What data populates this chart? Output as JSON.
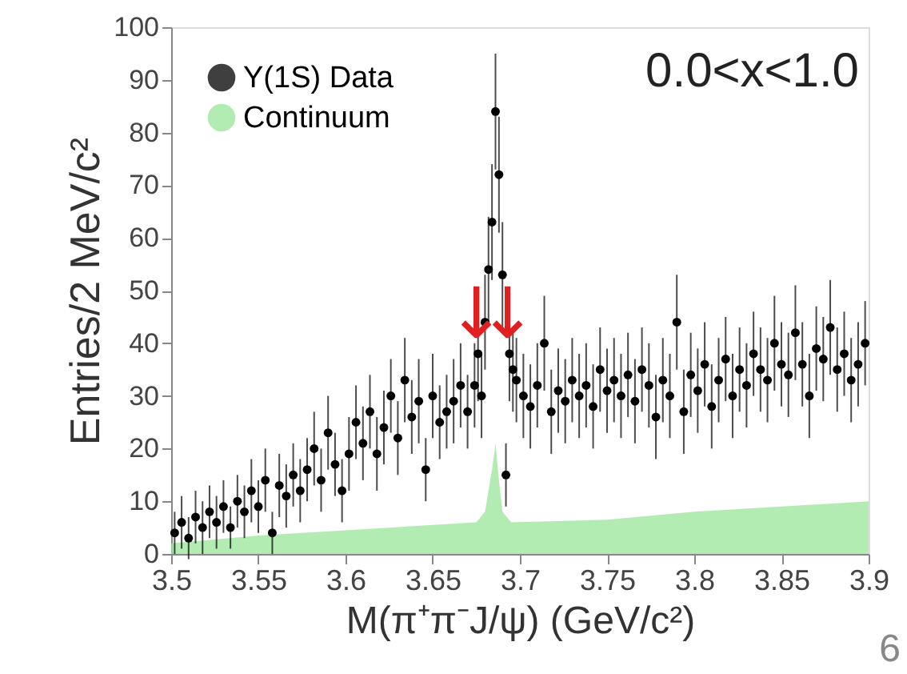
{
  "chart_data": {
    "type": "scatter",
    "xlabel": "M(π⁺π⁻J/ψ) (GeV/c²)",
    "ylabel": "Entries/2 MeV/c²",
    "xlim": [
      3.5,
      3.9
    ],
    "ylim": [
      0,
      100
    ],
    "xticks": [
      3.5,
      3.55,
      3.6,
      3.65,
      3.7,
      3.75,
      3.8,
      3.85,
      3.9
    ],
    "yticks": [
      0,
      10,
      20,
      30,
      40,
      50,
      60,
      70,
      80,
      90,
      100
    ],
    "grid": false,
    "legend": "top left",
    "series": [
      {
        "name": "Υ(1S) Data",
        "color": "#000000",
        "marker": "circle",
        "x": [
          3.502,
          3.506,
          3.51,
          3.514,
          3.518,
          3.522,
          3.526,
          3.53,
          3.534,
          3.538,
          3.542,
          3.546,
          3.55,
          3.554,
          3.558,
          3.562,
          3.566,
          3.57,
          3.574,
          3.578,
          3.582,
          3.586,
          3.59,
          3.594,
          3.598,
          3.602,
          3.606,
          3.61,
          3.614,
          3.618,
          3.622,
          3.626,
          3.63,
          3.634,
          3.638,
          3.642,
          3.646,
          3.65,
          3.654,
          3.658,
          3.662,
          3.666,
          3.67,
          3.674,
          3.676,
          3.678,
          3.68,
          3.682,
          3.684,
          3.686,
          3.688,
          3.69,
          3.692,
          3.694,
          3.696,
          3.698,
          3.702,
          3.706,
          3.71,
          3.714,
          3.718,
          3.722,
          3.726,
          3.73,
          3.734,
          3.738,
          3.742,
          3.746,
          3.75,
          3.754,
          3.758,
          3.762,
          3.766,
          3.77,
          3.774,
          3.778,
          3.782,
          3.786,
          3.79,
          3.794,
          3.798,
          3.802,
          3.806,
          3.81,
          3.814,
          3.818,
          3.822,
          3.826,
          3.83,
          3.834,
          3.838,
          3.842,
          3.846,
          3.85,
          3.854,
          3.858,
          3.862,
          3.866,
          3.87,
          3.874,
          3.878,
          3.882,
          3.886,
          3.89,
          3.894,
          3.898
        ],
        "values": [
          4,
          6,
          3,
          7,
          5,
          8,
          6,
          9,
          5,
          10,
          8,
          12,
          9,
          14,
          4,
          13,
          11,
          15,
          12,
          16,
          20,
          14,
          23,
          17,
          12,
          19,
          25,
          21,
          27,
          19,
          24,
          30,
          22,
          33,
          26,
          29,
          16,
          30,
          25,
          27,
          29,
          32,
          27,
          32,
          38,
          30,
          44,
          54,
          63,
          84,
          72,
          53,
          15,
          38,
          35,
          33,
          30,
          28,
          32,
          40,
          27,
          31,
          29,
          33,
          30,
          32,
          28,
          35,
          31,
          33,
          30,
          34,
          29,
          35,
          32,
          26,
          33,
          30,
          44,
          27,
          34,
          31,
          36,
          28,
          33,
          37,
          30,
          35,
          32,
          38,
          35,
          33,
          40,
          36,
          34,
          42,
          36,
          30,
          39,
          37,
          43,
          35,
          38,
          33,
          36,
          40
        ],
        "errors": [
          4,
          5,
          4,
          5,
          5,
          5,
          5,
          5,
          4,
          5,
          5,
          6,
          5,
          6,
          4,
          6,
          6,
          6,
          6,
          6,
          7,
          6,
          7,
          6,
          6,
          7,
          7,
          7,
          7,
          7,
          7,
          7,
          7,
          8,
          7,
          8,
          6,
          8,
          7,
          7,
          8,
          8,
          7,
          8,
          9,
          8,
          9,
          10,
          11,
          11,
          11,
          10,
          6,
          9,
          8,
          8,
          8,
          8,
          8,
          9,
          8,
          8,
          8,
          8,
          8,
          8,
          8,
          8,
          8,
          8,
          8,
          8,
          8,
          8,
          8,
          8,
          8,
          8,
          9,
          8,
          8,
          8,
          8,
          8,
          8,
          8,
          8,
          8,
          8,
          8,
          8,
          8,
          9,
          8,
          8,
          9,
          8,
          8,
          8,
          8,
          9,
          8,
          8,
          8,
          8,
          8
        ]
      },
      {
        "name": "Continuum",
        "type": "area",
        "color": "#99e699",
        "x": [
          3.5,
          3.55,
          3.6,
          3.65,
          3.675,
          3.68,
          3.684,
          3.686,
          3.688,
          3.69,
          3.695,
          3.75,
          3.8,
          3.85,
          3.9
        ],
        "values": [
          2,
          3.5,
          4.5,
          5.5,
          6,
          8,
          16,
          21,
          14,
          8,
          6,
          6.5,
          8,
          9,
          10
        ]
      }
    ],
    "annotations": [
      "0.0<x<1.0",
      "6",
      {
        "text": "↓",
        "x": 3.675,
        "y": 41
      },
      {
        "text": "↓",
        "x": 3.693,
        "y": 41
      }
    ]
  }
}
